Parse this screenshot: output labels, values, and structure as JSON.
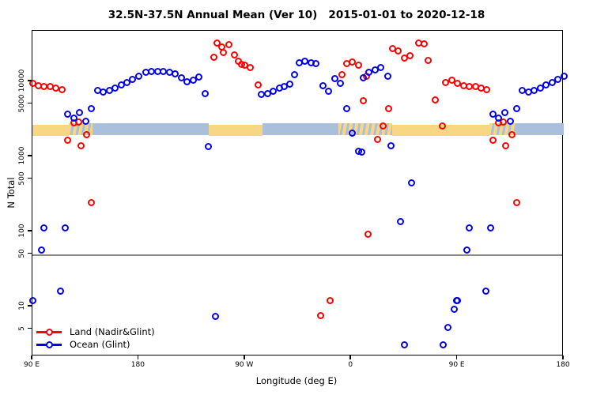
{
  "title": "32.5N-37.5N Annual Mean (Ver 10)   2015-01-01 to 2020-12-18",
  "chart_data": {
    "type": "scatter",
    "title": "32.5N-37.5N Annual Mean (Ver 10)   2015-01-01 to 2020-12-18",
    "xlabel": "Longitude (deg E)",
    "ylabel": "N Total",
    "x_axis": {
      "span_deg": 450,
      "note": "axis runs 90E eastward around the globe to 180 (wraps past 360)",
      "ticks": [
        {
          "deg": 0,
          "label": "90 E"
        },
        {
          "deg": 90,
          "label": "180"
        },
        {
          "deg": 180,
          "label": "90 W"
        },
        {
          "deg": 270,
          "label": "0"
        },
        {
          "deg": 360,
          "label": "90 E"
        },
        {
          "deg": 450,
          "label": "180"
        }
      ]
    },
    "y_axis": {
      "scale": "log10",
      "ticks": [
        10000,
        5000,
        1000,
        500,
        100,
        50,
        10,
        5
      ],
      "range": [
        2.5,
        40000
      ]
    },
    "reference_line": {
      "value": 50,
      "color": "#8a8a8a"
    },
    "surface_band": {
      "n_range": [
        1880,
        2770
      ],
      "land_color": "#F7D784",
      "ocean_color": "#A9BFDB",
      "segments": [
        {
          "from_deg": 0,
          "to_deg": 31,
          "type": "land"
        },
        {
          "from_deg": 31,
          "to_deg": 51,
          "type": "mixed"
        },
        {
          "from_deg": 51,
          "to_deg": 149,
          "type": "ocean"
        },
        {
          "from_deg": 149,
          "to_deg": 195,
          "type": "land"
        },
        {
          "from_deg": 195,
          "to_deg": 259,
          "type": "ocean"
        },
        {
          "from_deg": 259,
          "to_deg": 305,
          "type": "mixed"
        },
        {
          "from_deg": 305,
          "to_deg": 387,
          "type": "land"
        },
        {
          "from_deg": 387,
          "to_deg": 410,
          "type": "mixed"
        },
        {
          "from_deg": 410,
          "to_deg": 450,
          "type": "ocean"
        }
      ]
    },
    "legend": {
      "position": "bottom-left",
      "items": [
        {
          "label": "Land (Nadir&Glint)",
          "color": "#FF0000"
        },
        {
          "label": "Ocean (Glint)",
          "color": "#0000EE"
        }
      ]
    },
    "series": [
      {
        "name": "Land (Nadir&Glint)",
        "color": "#FF0000",
        "points": [
          [
            350,
            9700
          ],
          [
            355,
            10300
          ],
          [
            0,
            9300
          ],
          [
            5,
            8800
          ],
          [
            10,
            8500
          ],
          [
            15,
            8600
          ],
          [
            20,
            8200
          ],
          [
            25,
            7800
          ],
          [
            30,
            1650
          ],
          [
            35,
            2770
          ],
          [
            39,
            2870
          ],
          [
            41,
            1390
          ],
          [
            46,
            1950
          ],
          [
            50,
            245
          ],
          [
            153.5,
            21000
          ],
          [
            156.5,
            32500
          ],
          [
            160.5,
            29000
          ],
          [
            162,
            24500
          ],
          [
            166.5,
            31000
          ],
          [
            171,
            22500
          ],
          [
            174.5,
            18500
          ],
          [
            177,
            16800
          ],
          [
            180,
            16300
          ],
          [
            184.5,
            15400
          ],
          [
            191,
            8900
          ],
          [
            244,
            7.6
          ],
          [
            252,
            11.9
          ],
          [
            262,
            12200
          ],
          [
            266,
            17100
          ],
          [
            271,
            17900
          ],
          [
            276,
            16400
          ],
          [
            280,
            5500
          ],
          [
            283,
            11600
          ],
          [
            284,
            92
          ],
          [
            292,
            1680
          ],
          [
            297,
            2560
          ],
          [
            302,
            4300
          ],
          [
            305,
            27200
          ],
          [
            310,
            25600
          ],
          [
            315,
            20500
          ],
          [
            320,
            22100
          ],
          [
            327,
            32500
          ],
          [
            331.5,
            31700
          ],
          [
            335,
            18900
          ],
          [
            341,
            5600
          ],
          [
            347,
            2560
          ],
          [
            360,
            9300
          ],
          [
            365,
            8800
          ],
          [
            370,
            8500
          ],
          [
            375,
            8600
          ],
          [
            380,
            8200
          ],
          [
            385,
            7800
          ],
          [
            390,
            1650
          ],
          [
            395,
            2770
          ],
          [
            399,
            2870
          ],
          [
            401,
            1390
          ],
          [
            406,
            1950
          ],
          [
            410,
            245
          ]
        ]
      },
      {
        "name": "Ocean (Glint)",
        "color": "#0000EE",
        "points": [
          [
            0,
            12
          ],
          [
            8,
            56
          ],
          [
            10,
            112
          ],
          [
            24,
            16
          ],
          [
            28,
            112
          ],
          [
            30,
            3700
          ],
          [
            35,
            3260
          ],
          [
            40,
            3820
          ],
          [
            45,
            2960
          ],
          [
            50,
            4300
          ],
          [
            55,
            7490
          ],
          [
            60,
            7180
          ],
          [
            65,
            7490
          ],
          [
            70,
            8180
          ],
          [
            75,
            8920
          ],
          [
            80,
            9680
          ],
          [
            85,
            10500
          ],
          [
            90,
            11600
          ],
          [
            96,
            13150
          ],
          [
            101,
            13470
          ],
          [
            106,
            13700
          ],
          [
            111,
            13700
          ],
          [
            116,
            13150
          ],
          [
            121,
            12500
          ],
          [
            126,
            11160
          ],
          [
            131,
            9840
          ],
          [
            136,
            10440
          ],
          [
            141,
            11470
          ],
          [
            146,
            6840
          ],
          [
            149,
            1340
          ],
          [
            155,
            7.3
          ],
          [
            194,
            6630
          ],
          [
            199,
            6840
          ],
          [
            204,
            7300
          ],
          [
            209,
            8180
          ],
          [
            213,
            8510
          ],
          [
            218,
            9230
          ],
          [
            222,
            12340
          ],
          [
            226,
            17500
          ],
          [
            231,
            18450
          ],
          [
            236,
            17700
          ],
          [
            240,
            17060
          ],
          [
            246,
            8700
          ],
          [
            251,
            7300
          ],
          [
            256,
            10900
          ],
          [
            261,
            9400
          ],
          [
            266,
            4300
          ],
          [
            271,
            2050
          ],
          [
            276,
            1160
          ],
          [
            279,
            1130
          ],
          [
            280,
            11160
          ],
          [
            285,
            13150
          ],
          [
            290,
            14280
          ],
          [
            295,
            15100
          ],
          [
            301,
            11800
          ],
          [
            304,
            1390
          ],
          [
            312,
            136
          ],
          [
            315,
            3.1
          ],
          [
            321,
            445
          ],
          [
            348,
            3.1
          ],
          [
            352,
            5.3
          ],
          [
            357,
            9.2
          ],
          [
            359.5,
            12
          ],
          [
            360,
            12
          ],
          [
            368,
            56
          ],
          [
            370,
            112
          ],
          [
            384,
            16
          ],
          [
            388,
            112
          ],
          [
            390,
            3700
          ],
          [
            395,
            3260
          ],
          [
            400,
            3820
          ],
          [
            405,
            2960
          ],
          [
            410,
            4300
          ],
          [
            415,
            7490
          ],
          [
            420,
            7180
          ],
          [
            425,
            7490
          ],
          [
            430,
            8180
          ],
          [
            435,
            8920
          ],
          [
            440,
            9680
          ],
          [
            445,
            10500
          ],
          [
            450,
            11600
          ]
        ]
      }
    ]
  }
}
